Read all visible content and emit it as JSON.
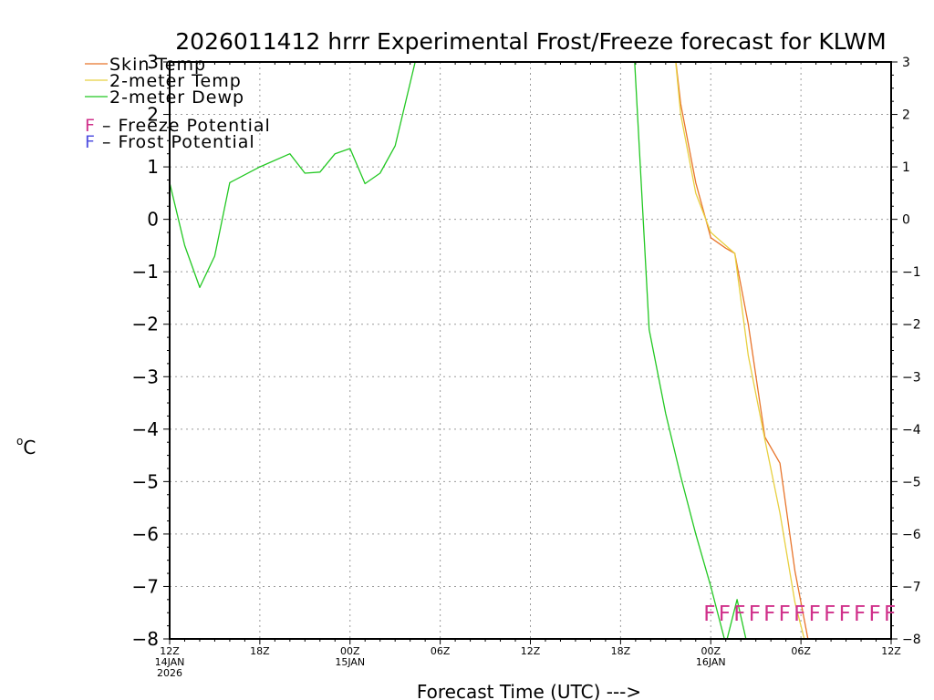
{
  "chart_data": {
    "type": "line",
    "title": "2026011412 hrrr Experimental Frost/Freeze forecast for KLWM",
    "ylabel_sup": "o",
    "ylabel": "C",
    "xlabel": "Forecast Time (UTC) --->",
    "ylim": [
      -8,
      3
    ],
    "xlim": [
      0,
      48
    ],
    "yticks": [
      -8,
      -7,
      -6,
      -5,
      -4,
      -3,
      -2,
      -1,
      0,
      1,
      2,
      3
    ],
    "xticks": [
      {
        "x": 0,
        "label": "12Z",
        "date": "14JAN",
        "year": "2026"
      },
      {
        "x": 6,
        "label": "18Z"
      },
      {
        "x": 12,
        "label": "00Z",
        "date": "15JAN"
      },
      {
        "x": 18,
        "label": "06Z"
      },
      {
        "x": 24,
        "label": "12Z"
      },
      {
        "x": 30,
        "label": "18Z"
      },
      {
        "x": 36,
        "label": "00Z",
        "date": "16JAN"
      },
      {
        "x": 42,
        "label": "06Z"
      },
      {
        "x": 48,
        "label": "12Z"
      }
    ],
    "grid": true,
    "series": [
      {
        "name": "Skin Temp",
        "color": "#e8742a",
        "points": [
          [
            33.6,
            3.2
          ],
          [
            34,
            2.2
          ],
          [
            35,
            0.7
          ],
          [
            36,
            -0.35
          ],
          [
            37,
            -0.55
          ],
          [
            37.6,
            -0.65
          ],
          [
            38.5,
            -2.0
          ],
          [
            39.6,
            -4.15
          ],
          [
            40.6,
            -4.65
          ],
          [
            41.6,
            -6.7
          ],
          [
            42.6,
            -8.2
          ]
        ]
      },
      {
        "name": "2-meter Temp",
        "color": "#e8d040",
        "points": [
          [
            33.6,
            3.2
          ],
          [
            34,
            2.0
          ],
          [
            35,
            0.5
          ],
          [
            36,
            -0.25
          ],
          [
            37,
            -0.5
          ],
          [
            37.6,
            -0.65
          ],
          [
            38.5,
            -2.6
          ],
          [
            39.6,
            -4.2
          ],
          [
            40.6,
            -5.6
          ],
          [
            41.6,
            -7.3
          ],
          [
            42.4,
            -8.2
          ]
        ]
      },
      {
        "name": "2-meter Dewp",
        "color": "#22c822",
        "points": [
          [
            0,
            0.7
          ],
          [
            1,
            -0.5
          ],
          [
            2,
            -1.3
          ],
          [
            3,
            -0.7
          ],
          [
            4,
            0.7
          ],
          [
            6,
            1.0
          ],
          [
            8,
            1.25
          ],
          [
            9,
            0.88
          ],
          [
            10,
            0.9
          ],
          [
            11,
            1.25
          ],
          [
            12,
            1.35
          ],
          [
            13,
            0.68
          ],
          [
            14,
            0.88
          ],
          [
            15,
            1.4
          ],
          [
            16,
            2.6
          ],
          [
            16.5,
            3.2
          ],
          [
            30.9,
            3.2
          ],
          [
            31.9,
            -2.1
          ],
          [
            33,
            -3.7
          ],
          [
            34,
            -4.9
          ],
          [
            35,
            -6.0
          ],
          [
            36,
            -7.0
          ],
          [
            37,
            -8.1
          ],
          [
            37.75,
            -7.25
          ],
          [
            38.5,
            -8.2
          ]
        ]
      }
    ],
    "legend": [
      {
        "label": "Skin Temp",
        "color": "#e8742a"
      },
      {
        "label": "2-meter Temp",
        "color": "#e8d040"
      },
      {
        "label": "2-meter Dewp",
        "color": "#22c822"
      }
    ],
    "potential_legend": [
      {
        "marker": "F",
        "label": " – Freeze Potential",
        "color": "#d0308a"
      },
      {
        "marker": "F",
        "label": " – Frost Potential",
        "color": "#5050e0"
      }
    ],
    "freeze_markers": {
      "marker": "F",
      "color": "#d0308a",
      "y": -7.5,
      "x": [
        36,
        37,
        38,
        39,
        40,
        41,
        42,
        43,
        44,
        45,
        46,
        47,
        48
      ]
    }
  }
}
